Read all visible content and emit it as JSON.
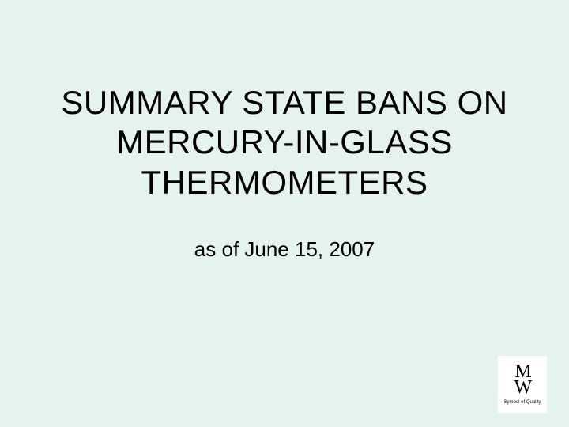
{
  "slide": {
    "background_color": "#e6f2ed",
    "title_line1": "SUMMARY STATE BANS ON",
    "title_line2": "MERCURY-IN-GLASS",
    "title_line3": "THERMOMETERS",
    "title_fontsize": 42,
    "title_color": "#000000",
    "subtitle": "as of June 15, 2007",
    "subtitle_fontsize": 26,
    "subtitle_color": "#000000"
  },
  "logo": {
    "letter_m": "M",
    "letter_w": "W",
    "tagline": "Symbol of Quality",
    "background_color": "#ffffff",
    "text_color": "#000000"
  }
}
